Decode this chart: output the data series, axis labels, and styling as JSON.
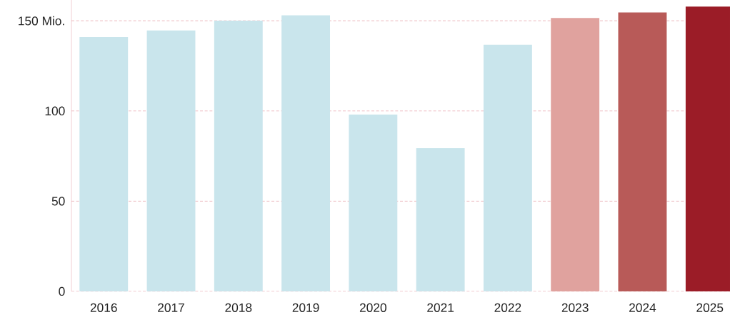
{
  "chart_data": {
    "type": "bar",
    "categories": [
      "2016",
      "2017",
      "2018",
      "2019",
      "2020",
      "2021",
      "2022",
      "2023",
      "2024",
      "2025"
    ],
    "values": [
      141,
      144.6,
      150,
      153,
      98,
      79.4,
      136.7,
      151.5,
      154.6,
      157.8
    ],
    "colors": [
      "#c9e5ec",
      "#c9e5ec",
      "#c9e5ec",
      "#c9e5ec",
      "#c9e5ec",
      "#c9e5ec",
      "#c9e5ec",
      "#e0a29e",
      "#b85a58",
      "#9b1c27"
    ],
    "ylim": [
      0,
      161.5
    ],
    "yticks": [
      0,
      50,
      100,
      {
        "value": 150,
        "label": "150 Mio."
      }
    ],
    "grid": "y"
  }
}
